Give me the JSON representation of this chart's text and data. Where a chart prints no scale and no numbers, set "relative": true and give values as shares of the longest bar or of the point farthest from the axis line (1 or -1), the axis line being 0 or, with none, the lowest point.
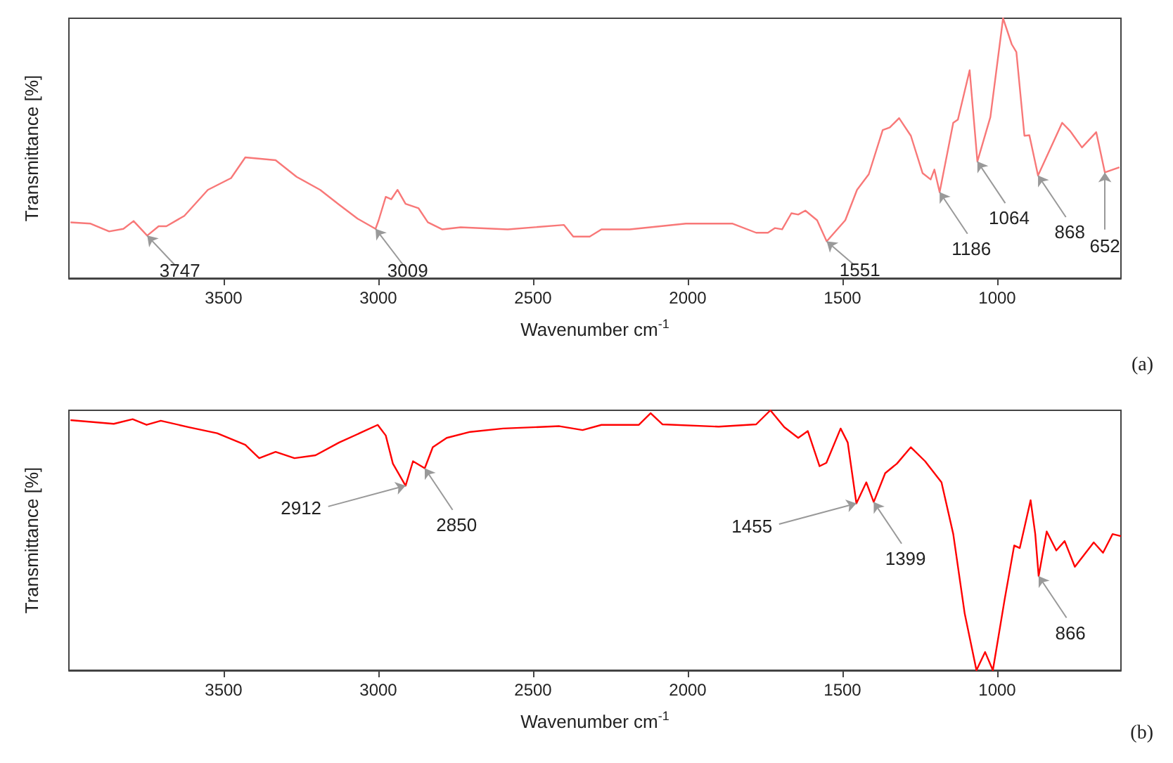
{
  "chart_data": [
    {
      "type": "line",
      "relative": true,
      "xlabel": "Wavenumber cm$^{-1}$",
      "ylabel": "Transmittance [%]",
      "xlim": [
        4000,
        600
      ],
      "xticks": [
        3500,
        3000,
        2500,
        2000,
        1500,
        1000
      ],
      "grid": false,
      "marker": "none",
      "line_style": "solid",
      "x": [
        3995,
        3930,
        3870,
        3824,
        3791,
        3747,
        3710,
        3685,
        3627,
        3551,
        3476,
        3430,
        3332,
        3264,
        3188,
        3127,
        3067,
        3009,
        2999,
        2976,
        2958,
        2938,
        2912,
        2870,
        2840,
        2794,
        2734,
        2582,
        2400,
        2370,
        2317,
        2279,
        2188,
        2006,
        1855,
        1779,
        1741,
        1718,
        1695,
        1665,
        1643,
        1620,
        1582,
        1551,
        1491,
        1453,
        1415,
        1370,
        1347,
        1317,
        1279,
        1241,
        1215,
        1203,
        1186,
        1142,
        1127,
        1089,
        1064,
        1022,
        981,
        953,
        938,
        912,
        896,
        868,
        790,
        764,
        726,
        680,
        652,
        605
      ],
      "series": [
        {
          "color": "#f87878",
          "values": [
            0.215,
            0.21,
            0.18,
            0.19,
            0.22,
            0.164,
            0.2,
            0.2,
            0.24,
            0.34,
            0.385,
            0.465,
            0.454,
            0.39,
            0.34,
            0.283,
            0.229,
            0.19,
            0.223,
            0.313,
            0.304,
            0.34,
            0.286,
            0.269,
            0.215,
            0.188,
            0.196,
            0.188,
            0.205,
            0.16,
            0.16,
            0.188,
            0.188,
            0.21,
            0.21,
            0.175,
            0.175,
            0.193,
            0.188,
            0.25,
            0.245,
            0.26,
            0.223,
            0.142,
            0.223,
            0.34,
            0.4,
            0.57,
            0.58,
            0.616,
            0.548,
            0.404,
            0.38,
            0.418,
            0.331,
            0.598,
            0.61,
            0.8,
            0.449,
            0.62,
            1.0,
            0.9,
            0.87,
            0.548,
            0.55,
            0.395,
            0.598,
            0.566,
            0.503,
            0.562,
            0.407,
            0.427
          ]
        }
      ],
      "annotations": [
        {
          "text": "3747",
          "x": 3747,
          "y": 0.164
        },
        {
          "text": "3009",
          "x": 3009,
          "y": 0.19
        },
        {
          "text": "1551",
          "x": 1551,
          "y": 0.142
        },
        {
          "text": "1186",
          "x": 1186,
          "y": 0.331
        },
        {
          "text": "1064",
          "x": 1064,
          "y": 0.449
        },
        {
          "text": "868",
          "x": 868,
          "y": 0.395
        },
        {
          "text": "652",
          "x": 652,
          "y": 0.407
        },
        "(a)"
      ]
    },
    {
      "type": "line",
      "relative": true,
      "xlabel": "Wavenumber cm$^{-1}$",
      "ylabel": "Transmittance [%]",
      "xlim": [
        4000,
        600
      ],
      "xticks": [
        3500,
        3000,
        2500,
        2000,
        1500,
        1000
      ],
      "grid": false,
      "marker": "none",
      "line_style": "solid",
      "x": [
        3995,
        3855,
        3794,
        3749,
        3703,
        3612,
        3521,
        3430,
        3385,
        3332,
        3271,
        3203,
        3127,
        3051,
        3002,
        2976,
        2953,
        2912,
        2888,
        2850,
        2824,
        2779,
        2703,
        2597,
        2415,
        2340,
        2279,
        2158,
        2120,
        2082,
        1900,
        1779,
        1733,
        1688,
        1643,
        1612,
        1574,
        1552,
        1506,
        1483,
        1455,
        1423,
        1399,
        1362,
        1324,
        1279,
        1233,
        1180,
        1142,
        1105,
        1067,
        1039,
        1014,
        976,
        945,
        927,
        892,
        877,
        866,
        840,
        809,
        782,
        749,
        688,
        658,
        627,
        600
      ],
      "series": [
        {
          "color": "#ff0000",
          "values": [
            0.962,
            0.948,
            0.966,
            0.944,
            0.96,
            0.935,
            0.912,
            0.867,
            0.816,
            0.84,
            0.816,
            0.827,
            0.876,
            0.917,
            0.944,
            0.903,
            0.795,
            0.71,
            0.804,
            0.777,
            0.858,
            0.894,
            0.917,
            0.93,
            0.939,
            0.924,
            0.944,
            0.944,
            0.989,
            0.946,
            0.937,
            0.946,
            1.0,
            0.935,
            0.894,
            0.92,
            0.785,
            0.798,
            0.93,
            0.876,
            0.642,
            0.723,
            0.647,
            0.758,
            0.795,
            0.858,
            0.804,
            0.723,
            0.524,
            0.218,
            0.0,
            0.07,
            0.0,
            0.272,
            0.48,
            0.47,
            0.654,
            0.524,
            0.362,
            0.534,
            0.461,
            0.497,
            0.398,
            0.492,
            0.452,
            0.524,
            0.516
          ]
        }
      ],
      "annotations": [
        {
          "text": "2912",
          "x": 2912,
          "y": 0.71
        },
        {
          "text": "2850",
          "x": 2850,
          "y": 0.777
        },
        {
          "text": "1455",
          "x": 1455,
          "y": 0.642
        },
        {
          "text": "1399",
          "x": 1399,
          "y": 0.647
        },
        {
          "text": "866",
          "x": 866,
          "y": 0.362
        },
        "(b)"
      ]
    }
  ]
}
